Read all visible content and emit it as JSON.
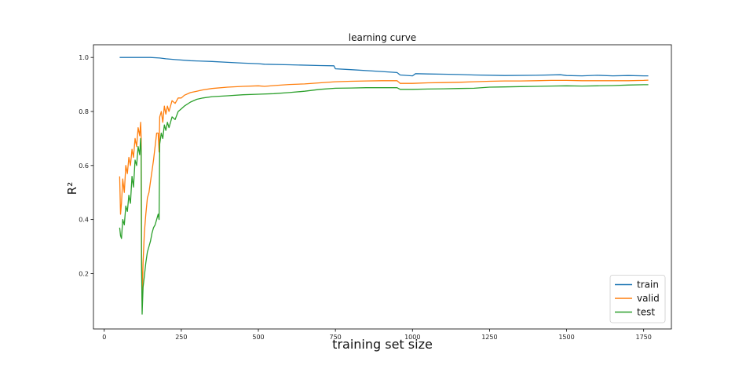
{
  "chart_data": {
    "type": "line",
    "title": "learning curve",
    "xlabel": "training set size",
    "ylabel": "R²",
    "xlim": [
      -35,
      1840
    ],
    "ylim": [
      -0.005,
      1.047
    ],
    "xticks": [
      0,
      250,
      500,
      750,
      1000,
      1250,
      1500,
      1750
    ],
    "yticks": [
      0.2,
      0.4,
      0.6,
      0.8,
      1.0
    ],
    "grid": false,
    "legend_position": "lower-right",
    "series": [
      {
        "name": "train",
        "color": "#1f77b4",
        "points": [
          [
            50,
            1.0
          ],
          [
            100,
            1.0
          ],
          [
            150,
            1.0
          ],
          [
            180,
            0.998
          ],
          [
            200,
            0.995
          ],
          [
            230,
            0.992
          ],
          [
            280,
            0.988
          ],
          [
            300,
            0.987
          ],
          [
            350,
            0.985
          ],
          [
            400,
            0.982
          ],
          [
            450,
            0.979
          ],
          [
            500,
            0.977
          ],
          [
            520,
            0.975
          ],
          [
            600,
            0.973
          ],
          [
            700,
            0.97
          ],
          [
            745,
            0.969
          ],
          [
            750,
            0.958
          ],
          [
            800,
            0.955
          ],
          [
            900,
            0.948
          ],
          [
            950,
            0.944
          ],
          [
            960,
            0.935
          ],
          [
            1000,
            0.932
          ],
          [
            1010,
            0.94
          ],
          [
            1050,
            0.939
          ],
          [
            1100,
            0.938
          ],
          [
            1150,
            0.937
          ],
          [
            1200,
            0.935
          ],
          [
            1300,
            0.933
          ],
          [
            1400,
            0.934
          ],
          [
            1480,
            0.936
          ],
          [
            1500,
            0.933
          ],
          [
            1550,
            0.932
          ],
          [
            1600,
            0.934
          ],
          [
            1650,
            0.932
          ],
          [
            1700,
            0.933
          ],
          [
            1750,
            0.932
          ],
          [
            1765,
            0.932
          ]
        ]
      },
      {
        "name": "valid",
        "color": "#ff7f0e",
        "points": [
          [
            50,
            0.56
          ],
          [
            53,
            0.42
          ],
          [
            56,
            0.46
          ],
          [
            60,
            0.55
          ],
          [
            65,
            0.5
          ],
          [
            70,
            0.6
          ],
          [
            75,
            0.57
          ],
          [
            80,
            0.63
          ],
          [
            85,
            0.6
          ],
          [
            90,
            0.66
          ],
          [
            95,
            0.63
          ],
          [
            100,
            0.7
          ],
          [
            105,
            0.67
          ],
          [
            110,
            0.74
          ],
          [
            115,
            0.71
          ],
          [
            118,
            0.76
          ],
          [
            120,
            0.7
          ],
          [
            121,
            0.3
          ],
          [
            123,
            0.1
          ],
          [
            126,
            0.24
          ],
          [
            130,
            0.35
          ],
          [
            135,
            0.42
          ],
          [
            140,
            0.48
          ],
          [
            145,
            0.5
          ],
          [
            150,
            0.54
          ],
          [
            155,
            0.58
          ],
          [
            160,
            0.62
          ],
          [
            165,
            0.67
          ],
          [
            170,
            0.72
          ],
          [
            175,
            0.72
          ],
          [
            178,
            0.65
          ],
          [
            180,
            0.78
          ],
          [
            185,
            0.8
          ],
          [
            190,
            0.76
          ],
          [
            195,
            0.82
          ],
          [
            200,
            0.79
          ],
          [
            205,
            0.82
          ],
          [
            210,
            0.8
          ],
          [
            220,
            0.84
          ],
          [
            230,
            0.83
          ],
          [
            240,
            0.85
          ],
          [
            250,
            0.85
          ],
          [
            260,
            0.86
          ],
          [
            280,
            0.87
          ],
          [
            300,
            0.875
          ],
          [
            320,
            0.88
          ],
          [
            350,
            0.885
          ],
          [
            400,
            0.89
          ],
          [
            450,
            0.893
          ],
          [
            500,
            0.895
          ],
          [
            520,
            0.893
          ],
          [
            550,
            0.896
          ],
          [
            600,
            0.9
          ],
          [
            650,
            0.902
          ],
          [
            700,
            0.906
          ],
          [
            750,
            0.91
          ],
          [
            800,
            0.912
          ],
          [
            850,
            0.913
          ],
          [
            900,
            0.914
          ],
          [
            950,
            0.914
          ],
          [
            960,
            0.904
          ],
          [
            1000,
            0.904
          ],
          [
            1050,
            0.906
          ],
          [
            1100,
            0.907
          ],
          [
            1150,
            0.908
          ],
          [
            1200,
            0.91
          ],
          [
            1250,
            0.912
          ],
          [
            1300,
            0.913
          ],
          [
            1350,
            0.913
          ],
          [
            1400,
            0.914
          ],
          [
            1450,
            0.915
          ],
          [
            1500,
            0.915
          ],
          [
            1550,
            0.914
          ],
          [
            1600,
            0.914
          ],
          [
            1650,
            0.914
          ],
          [
            1700,
            0.914
          ],
          [
            1750,
            0.915
          ],
          [
            1765,
            0.916
          ]
        ]
      },
      {
        "name": "test",
        "color": "#2ca02c",
        "points": [
          [
            50,
            0.37
          ],
          [
            53,
            0.34
          ],
          [
            56,
            0.33
          ],
          [
            60,
            0.4
          ],
          [
            65,
            0.38
          ],
          [
            70,
            0.45
          ],
          [
            75,
            0.43
          ],
          [
            80,
            0.49
          ],
          [
            85,
            0.46
          ],
          [
            90,
            0.56
          ],
          [
            95,
            0.52
          ],
          [
            100,
            0.62
          ],
          [
            105,
            0.6
          ],
          [
            110,
            0.67
          ],
          [
            115,
            0.64
          ],
          [
            118,
            0.7
          ],
          [
            120,
            0.65
          ],
          [
            121,
            0.25
          ],
          [
            123,
            0.05
          ],
          [
            126,
            0.15
          ],
          [
            130,
            0.19
          ],
          [
            135,
            0.24
          ],
          [
            140,
            0.28
          ],
          [
            145,
            0.3
          ],
          [
            150,
            0.32
          ],
          [
            155,
            0.35
          ],
          [
            160,
            0.37
          ],
          [
            165,
            0.38
          ],
          [
            170,
            0.4
          ],
          [
            175,
            0.42
          ],
          [
            178,
            0.4
          ],
          [
            180,
            0.68
          ],
          [
            185,
            0.72
          ],
          [
            190,
            0.7
          ],
          [
            195,
            0.75
          ],
          [
            200,
            0.73
          ],
          [
            205,
            0.76
          ],
          [
            210,
            0.74
          ],
          [
            220,
            0.78
          ],
          [
            230,
            0.77
          ],
          [
            240,
            0.8
          ],
          [
            250,
            0.81
          ],
          [
            260,
            0.82
          ],
          [
            280,
            0.835
          ],
          [
            300,
            0.845
          ],
          [
            320,
            0.85
          ],
          [
            350,
            0.855
          ],
          [
            400,
            0.858
          ],
          [
            450,
            0.862
          ],
          [
            500,
            0.864
          ],
          [
            550,
            0.866
          ],
          [
            600,
            0.87
          ],
          [
            650,
            0.875
          ],
          [
            700,
            0.882
          ],
          [
            750,
            0.886
          ],
          [
            800,
            0.887
          ],
          [
            850,
            0.888
          ],
          [
            900,
            0.888
          ],
          [
            950,
            0.888
          ],
          [
            960,
            0.882
          ],
          [
            1000,
            0.882
          ],
          [
            1050,
            0.883
          ],
          [
            1100,
            0.884
          ],
          [
            1150,
            0.885
          ],
          [
            1200,
            0.886
          ],
          [
            1250,
            0.89
          ],
          [
            1300,
            0.891
          ],
          [
            1350,
            0.892
          ],
          [
            1400,
            0.893
          ],
          [
            1450,
            0.894
          ],
          [
            1500,
            0.895
          ],
          [
            1550,
            0.894
          ],
          [
            1600,
            0.895
          ],
          [
            1650,
            0.896
          ],
          [
            1700,
            0.898
          ],
          [
            1750,
            0.899
          ],
          [
            1765,
            0.899
          ]
        ]
      }
    ]
  }
}
